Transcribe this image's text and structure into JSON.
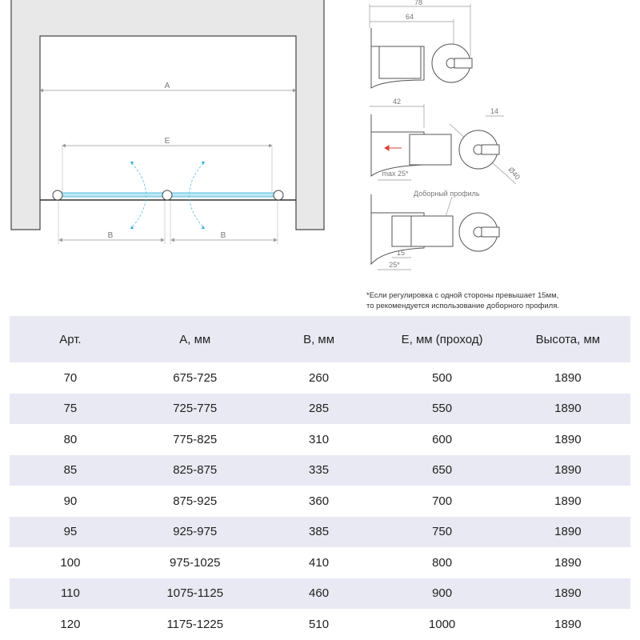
{
  "plan": {
    "label_a": "A",
    "label_e": "E",
    "label_b_left": "B",
    "label_b_right": "B",
    "glass_color": "#5bc0e0",
    "arrow_color": "#2aa8d8"
  },
  "profiles": {
    "dim_78": "78",
    "dim_64": "64",
    "dim_42": "42",
    "dim_14": "14",
    "dim_max25": "max 25*",
    "dim_d40": "Ø40",
    "extra_profile_label": "Доборный профиль",
    "dim_15": "15",
    "dim_25": "25*",
    "arrow_color": "#d9413a"
  },
  "note": {
    "line1": "*Если регулировка с одной стороны превышает 15мм,",
    "line2": "то рекомендуется использование доборного профиля."
  },
  "table": {
    "headers": [
      "Арт.",
      "А, мм",
      "В, мм",
      "Е, мм (проход)",
      "Высота, мм"
    ],
    "rows": [
      [
        "70",
        "675-725",
        "260",
        "500",
        "1890"
      ],
      [
        "75",
        "725-775",
        "285",
        "550",
        "1890"
      ],
      [
        "80",
        "775-825",
        "310",
        "600",
        "1890"
      ],
      [
        "85",
        "825-875",
        "335",
        "650",
        "1890"
      ],
      [
        "90",
        "875-925",
        "360",
        "700",
        "1890"
      ],
      [
        "95",
        "925-975",
        "385",
        "750",
        "1890"
      ],
      [
        "100",
        "975-1025",
        "410",
        "800",
        "1890"
      ],
      [
        "110",
        "1075-1125",
        "460",
        "900",
        "1890"
      ],
      [
        "120",
        "1175-1225",
        "510",
        "1000",
        "1890"
      ]
    ]
  }
}
